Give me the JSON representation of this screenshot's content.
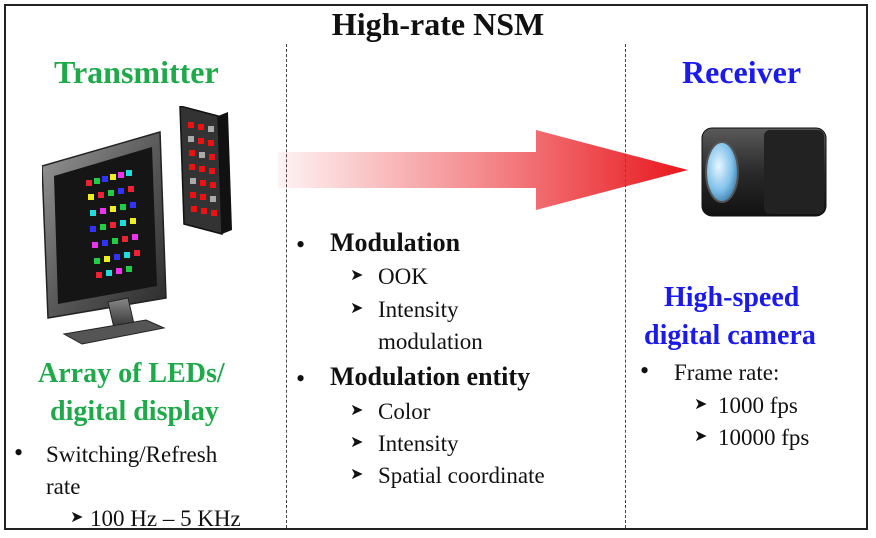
{
  "title": "High-rate NSM",
  "transmitter": {
    "heading": "Transmitter",
    "device_line1": "Array of LEDs/",
    "device_line2": "digital display",
    "bullet_line1": "Switching/Refresh",
    "bullet_line2": "rate",
    "sub_item": "100 Hz – 5 KHz"
  },
  "middle": {
    "modulation_heading": "Modulation",
    "modulation_items": [
      "OOK",
      "Intensity",
      "modulation"
    ],
    "entity_heading": "Modulation entity",
    "entity_items": [
      "Color",
      "Intensity",
      "Spatial coordinate"
    ]
  },
  "receiver": {
    "heading": "Receiver",
    "device_line1": "High-speed",
    "device_line2": "digital camera",
    "bullet": "Frame rate:",
    "sub_items": [
      "1000 fps",
      "10000 fps"
    ]
  },
  "colors": {
    "transmitter": "#1faa4a",
    "receiver": "#1a1aee",
    "arrow": "#e8161c"
  },
  "icons": {
    "bullet": "bullet-dot",
    "sub_bullet": "arrowhead-bullet"
  }
}
